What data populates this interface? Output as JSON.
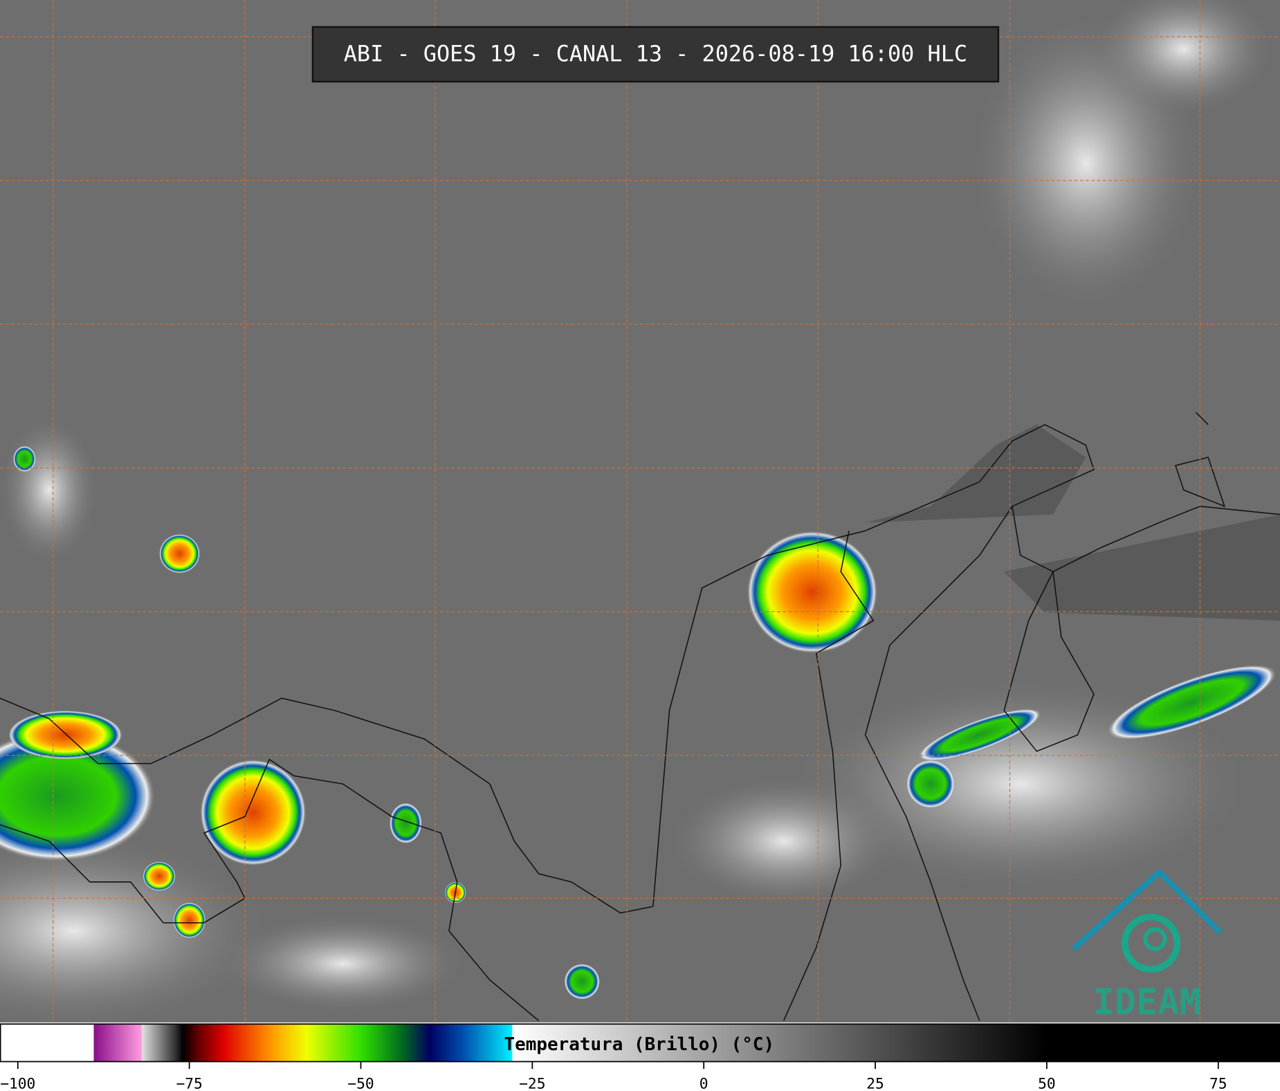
{
  "header": {
    "title": "ABI - GOES 19 - CANAL 13 - 2026-08-19 16:00 HLC"
  },
  "logo": {
    "text": "IDEAM"
  },
  "colorbar": {
    "label": "Temperatura (Brillo) (°C)",
    "range": [
      -102.6,
      84
    ],
    "ticks": [
      {
        "value": -100,
        "label": "−100"
      },
      {
        "value": -75,
        "label": "−75"
      },
      {
        "value": -50,
        "label": "−50"
      },
      {
        "value": -25,
        "label": "−25"
      },
      0,
      25,
      50,
      75
    ],
    "colormap": [
      {
        "value": -102.6,
        "color": "#ffffff"
      },
      {
        "value": -89,
        "color": "#ffffff"
      },
      {
        "value": -88.9,
        "color": "#8a0f8a"
      },
      {
        "value": -82,
        "color": "#ff9ce0"
      },
      {
        "value": -81.9,
        "color": "#e0e0e0"
      },
      {
        "value": -77,
        "color": "#303030"
      },
      {
        "value": -76,
        "color": "#000000"
      },
      {
        "value": -74,
        "color": "#5a0000"
      },
      {
        "value": -70,
        "color": "#e00000"
      },
      {
        "value": -63,
        "color": "#ff9a00"
      },
      {
        "value": -58,
        "color": "#f0ff00"
      },
      {
        "value": -50,
        "color": "#30e000"
      },
      {
        "value": -44,
        "color": "#006a20"
      },
      {
        "value": -40,
        "color": "#000060"
      },
      {
        "value": -35,
        "color": "#0050b0"
      },
      {
        "value": -28,
        "color": "#00f0ff"
      },
      {
        "value": -27.9,
        "color": "#ffffff"
      },
      {
        "value": 50,
        "color": "#000000"
      },
      {
        "value": 84,
        "color": "#000000"
      }
    ]
  }
}
